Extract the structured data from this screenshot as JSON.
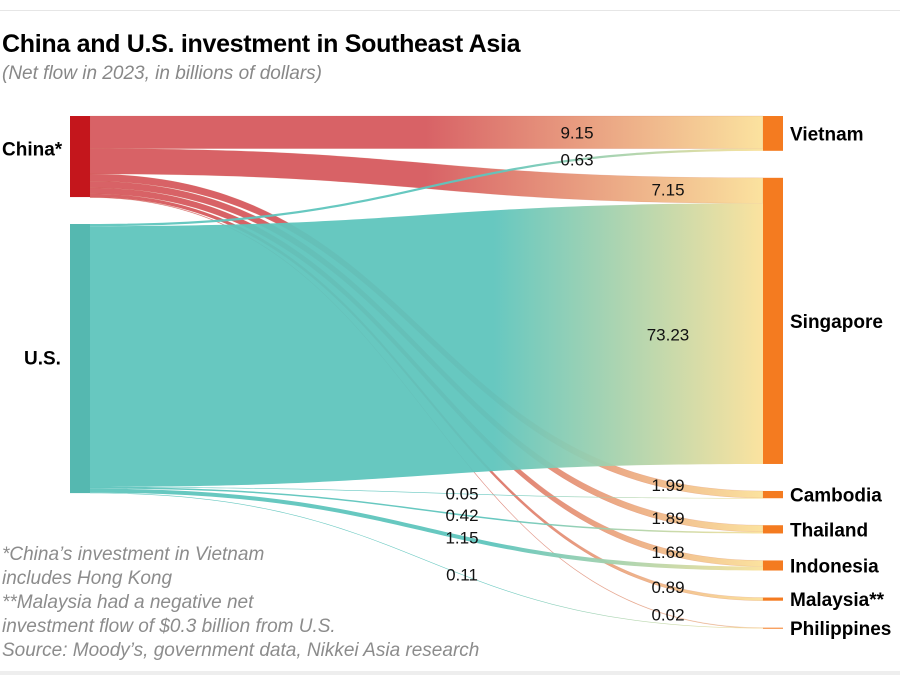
{
  "title": "China and U.S. investment in Southeast Asia",
  "subtitle": "(Net flow in 2023, in billions of dollars)",
  "notes": [
    "*China’s investment in Vietnam",
    "includes Hong Kong",
    "**Malaysia had a negative net",
    "investment flow of $0.3 billion from U.S.",
    "Source: Moody’s, government data, Nikkei Asia research"
  ],
  "colors": {
    "china_node": "#c4161c",
    "china_link": "#d65a5e",
    "us_node": "#55b8b0",
    "us_link": "#5fc5bd",
    "target_node": "#f47b20",
    "target_link_end": "#fbe19a"
  },
  "chart_data": {
    "type": "sankey",
    "title": "China and U.S. investment in Southeast Asia",
    "subtitle": "(Net flow in 2023, in billions of dollars)",
    "units": "billions of dollars",
    "sources": [
      {
        "id": "china",
        "label": "China*"
      },
      {
        "id": "us",
        "label": "U.S."
      }
    ],
    "targets": [
      {
        "id": "vietnam",
        "label": "Vietnam"
      },
      {
        "id": "singapore",
        "label": "Singapore"
      },
      {
        "id": "cambodia",
        "label": "Cambodia"
      },
      {
        "id": "thailand",
        "label": "Thailand"
      },
      {
        "id": "indonesia",
        "label": "Indonesia"
      },
      {
        "id": "malaysia",
        "label": "Malaysia**"
      },
      {
        "id": "philippines",
        "label": "Philippines"
      }
    ],
    "links": [
      {
        "source": "china",
        "target": "vietnam",
        "value": 9.15,
        "label": "9.15"
      },
      {
        "source": "china",
        "target": "singapore",
        "value": 7.15,
        "label": "7.15"
      },
      {
        "source": "china",
        "target": "cambodia",
        "value": 1.99,
        "label": "1.99"
      },
      {
        "source": "china",
        "target": "thailand",
        "value": 1.89,
        "label": "1.89"
      },
      {
        "source": "china",
        "target": "indonesia",
        "value": 1.68,
        "label": "1.68"
      },
      {
        "source": "china",
        "target": "malaysia",
        "value": 0.89,
        "label": "0.89"
      },
      {
        "source": "china",
        "target": "philippines",
        "value": 0.02,
        "label": "0.02"
      },
      {
        "source": "us",
        "target": "vietnam",
        "value": 0.63,
        "label": "0.63"
      },
      {
        "source": "us",
        "target": "singapore",
        "value": 73.23,
        "label": "73.23"
      },
      {
        "source": "us",
        "target": "cambodia",
        "value": 0.05,
        "label": "0.05"
      },
      {
        "source": "us",
        "target": "thailand",
        "value": 0.42,
        "label": "0.42"
      },
      {
        "source": "us",
        "target": "indonesia",
        "value": 1.15,
        "label": "1.15"
      },
      {
        "source": "us",
        "target": "philippines",
        "value": 0.11,
        "label": "0.11"
      }
    ]
  }
}
